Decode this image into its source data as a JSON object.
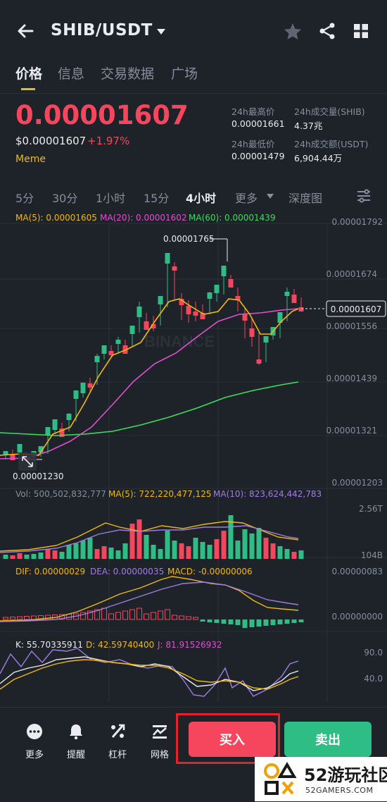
{
  "header": {
    "pair": "SHIB/USDT",
    "icons": [
      "back-arrow-icon",
      "dropdown-caret-icon",
      "star-icon",
      "share-icon",
      "grid-icon"
    ]
  },
  "main_tabs": [
    "价格",
    "信息",
    "交易数据",
    "广场"
  ],
  "price": {
    "last": "0.00001607",
    "usd": "$0.00001607",
    "change": "+1.97%",
    "tag": "Meme",
    "stats": {
      "high_label": "24h最高价",
      "high_value": "0.00001661",
      "low_label": "24h最低价",
      "low_value": "0.00001479",
      "vol_shib_label": "24h成交量(SHIB)",
      "vol_shib_value": "4.37兆",
      "vol_usdt_label": "24h成交额(USDT)",
      "vol_usdt_value": "6,904.44万"
    }
  },
  "time_tabs": [
    "5分",
    "30分",
    "1小时",
    "15分",
    "4小时",
    "更多",
    "深度图"
  ],
  "main_chart": {
    "ma5_label": "MA(5): 0.00001605",
    "ma20_label": "MA(20): 0.00001602",
    "ma60_label": "MA(60): 0.00001439",
    "price_axis": [
      "0.00001792",
      "0.00001674",
      "0.00001556",
      "0.00001439",
      "0.00001321",
      "0.00001203"
    ],
    "high_marker": "0.00001765",
    "low_marker": "0.00001230",
    "current_price_tag": "0.00001607",
    "watermark": "BINANCE"
  },
  "volume_chart": {
    "vol_label": "Vol: 500,502,832,777",
    "ma5_label": "MA(5): 722,220,477,125",
    "ma10_label": "MA(10): 823,624,442,783",
    "axis_top": "2.56T",
    "axis_bottom": "104B"
  },
  "macd_chart": {
    "dif_label": "DIF: 0.00000029",
    "dea_label": "DEA: 0.00000035",
    "macd_label": "MACD: -0.00000006",
    "axis_top": "0.00000083",
    "axis_mid": "0.00000000"
  },
  "kdj_chart": {
    "k_label": "K: 55.70335911",
    "d_label": "D: 42.59740400",
    "j_label": "J: 81.91526932",
    "axis_top": "90.0",
    "axis_mid": "40.0"
  },
  "bottom": {
    "tools": [
      "更多",
      "提醒",
      "杠杆",
      "网格"
    ],
    "buy": "买入",
    "sell": "卖出"
  },
  "watermark_site": {
    "title": "52游玩社区",
    "subtitle": "52GAMERS.COM"
  },
  "colors": {
    "up": "#2ebd85",
    "down": "#f6465d",
    "ma5": "#f0b90b",
    "ma20": "#e14fd0",
    "ma60": "#3ddc5b",
    "bg": "#1e2329"
  }
}
